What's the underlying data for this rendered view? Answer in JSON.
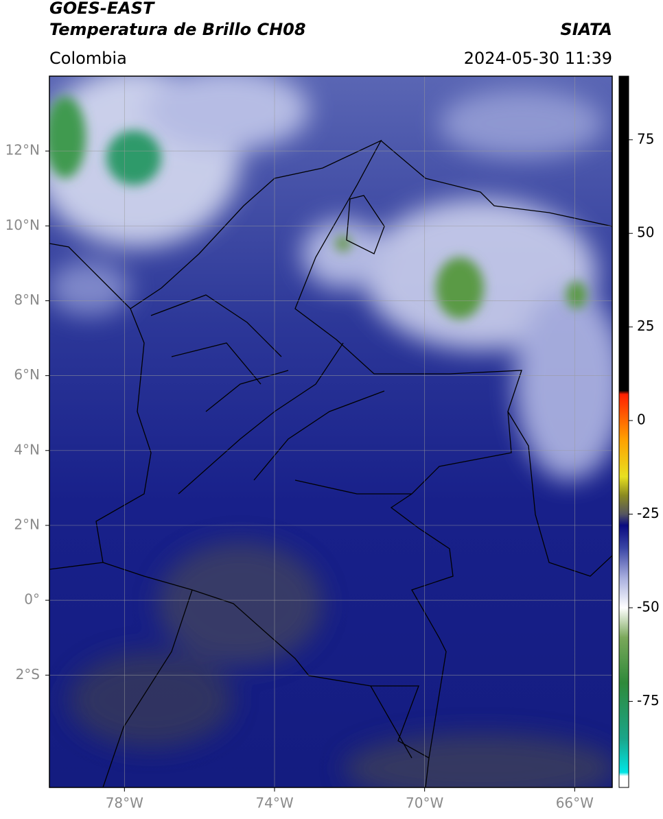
{
  "header": {
    "satellite": "GOES-EAST",
    "product": "Temperatura de Brillo CH08",
    "source": "SIATA",
    "region": "Colombia",
    "timestamp": "2024-05-30 11:39"
  },
  "map": {
    "xlim": [
      -80,
      -65
    ],
    "ylim": [
      -5,
      14
    ],
    "grid": true,
    "xticks": [
      {
        "value": -78,
        "label": "78°W"
      },
      {
        "value": -74,
        "label": "74°W"
      },
      {
        "value": -70,
        "label": "70°W"
      },
      {
        "value": -66,
        "label": "66°W"
      }
    ],
    "yticks": [
      {
        "value": 12,
        "label": "12°N"
      },
      {
        "value": 10,
        "label": "10°N"
      },
      {
        "value": 8,
        "label": "8°N"
      },
      {
        "value": 6,
        "label": "6°N"
      },
      {
        "value": 4,
        "label": "4°N"
      },
      {
        "value": 2,
        "label": "2°N"
      },
      {
        "value": 0,
        "label": "0°"
      },
      {
        "value": -2,
        "label": "2°S"
      }
    ]
  },
  "colorbar": {
    "ylim": [
      -98,
      92
    ],
    "yticks": [
      75,
      50,
      25,
      0,
      -25,
      -50,
      -75
    ],
    "colormap": [
      {
        "value": -98,
        "color": "#ffffff"
      },
      {
        "value": -95,
        "color": "#ffffff"
      },
      {
        "value": -94,
        "color": "#00e5e5"
      },
      {
        "value": -85,
        "color": "#1aa58a"
      },
      {
        "value": -70,
        "color": "#2f8a3a"
      },
      {
        "value": -58,
        "color": "#7aa85a"
      },
      {
        "value": -50,
        "color": "#ffffff"
      },
      {
        "value": -42,
        "color": "#a8aede"
      },
      {
        "value": -34,
        "color": "#3a45a5"
      },
      {
        "value": -28,
        "color": "#0a0a80"
      },
      {
        "value": -25,
        "color": "#555560"
      },
      {
        "value": -20,
        "color": "#8a8a20"
      },
      {
        "value": -15,
        "color": "#e8e020"
      },
      {
        "value": -5,
        "color": "#ffa000"
      },
      {
        "value": 7,
        "color": "#ff2000"
      },
      {
        "value": 8,
        "color": "#000000"
      },
      {
        "value": 92,
        "color": "#000000"
      }
    ]
  }
}
